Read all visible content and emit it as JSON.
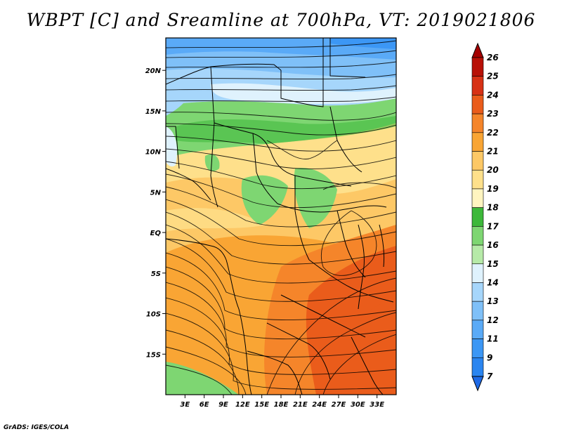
{
  "title": "WBPT [C] and Sreamline at 700hPa, VT: 2019021806",
  "credit": "GrADS: IGES/COLA",
  "map": {
    "variable": "WBPT [C]",
    "overlay": "Streamline",
    "level": "700hPa",
    "valid_time": "2019021806",
    "lon_range": [
      0,
      36
    ],
    "lat_range": [
      -20,
      24
    ],
    "lat_ticks": [
      {
        "value": 20,
        "label": "20N"
      },
      {
        "value": 15,
        "label": "15N"
      },
      {
        "value": 10,
        "label": "10N"
      },
      {
        "value": 5,
        "label": "5N"
      },
      {
        "value": 0,
        "label": "EQ"
      },
      {
        "value": -5,
        "label": "5S"
      },
      {
        "value": -10,
        "label": "10S"
      },
      {
        "value": -15,
        "label": "15S"
      }
    ],
    "lon_ticks": [
      {
        "value": 3,
        "label": "3E"
      },
      {
        "value": 6,
        "label": "6E"
      },
      {
        "value": 9,
        "label": "9E"
      },
      {
        "value": 12,
        "label": "12E"
      },
      {
        "value": 15,
        "label": "15E"
      },
      {
        "value": 18,
        "label": "18E"
      },
      {
        "value": 21,
        "label": "21E"
      },
      {
        "value": 24,
        "label": "24E"
      },
      {
        "value": 27,
        "label": "27E"
      },
      {
        "value": 30,
        "label": "30E"
      },
      {
        "value": 33,
        "label": "33E"
      }
    ]
  },
  "colorbar": {
    "levels": [
      "7",
      "9",
      "11",
      "12",
      "13",
      "14",
      "15",
      "16",
      "17",
      "18",
      "19",
      "20",
      "21",
      "22",
      "23",
      "24",
      "25",
      "26"
    ],
    "colors": [
      "#1e6ae6",
      "#2a85f0",
      "#3c97f5",
      "#5aaaf7",
      "#7fc0f8",
      "#a6d6fb",
      "#dff2fd",
      "#b6eaa8",
      "#7ed672",
      "#3db83a",
      "#fff5c0",
      "#fee08b",
      "#fdc866",
      "#f9a534",
      "#f5852a",
      "#ea5c1b",
      "#d73115",
      "#b81107",
      "#a50000"
    ]
  }
}
